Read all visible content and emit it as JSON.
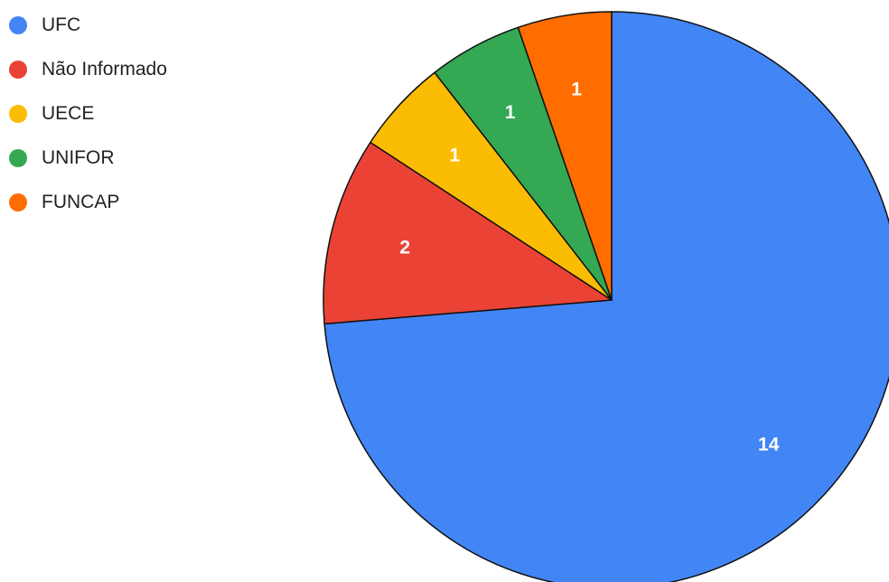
{
  "chart_data": {
    "type": "pie",
    "title": "",
    "legend_position": "top-left",
    "categories": [
      "UFC",
      "Não Informado",
      "UECE",
      "UNIFOR",
      "FUNCAP"
    ],
    "values": [
      14,
      2,
      1,
      1,
      1
    ],
    "data_labels": [
      "14",
      "2",
      "1",
      "1",
      "1"
    ],
    "colors": [
      "#4285f4",
      "#ea4335",
      "#fbbc04",
      "#34a853",
      "#ff6d01"
    ]
  }
}
